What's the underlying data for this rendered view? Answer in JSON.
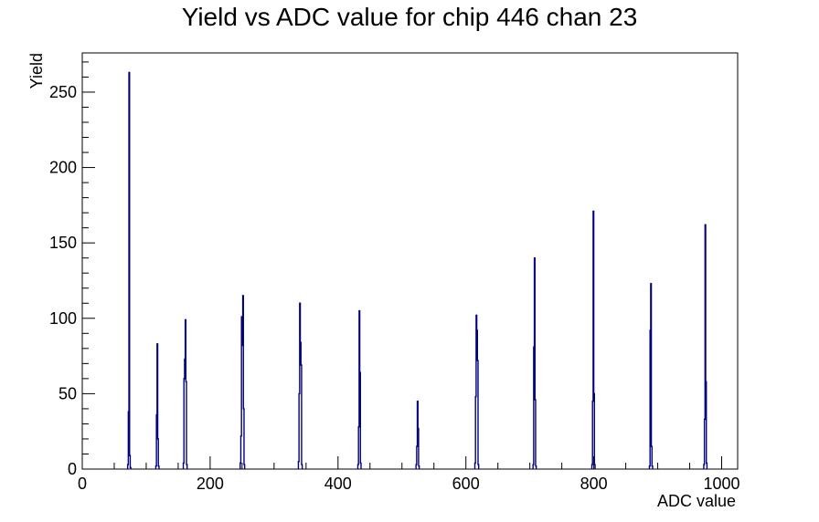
{
  "chart_data": {
    "type": "histogram",
    "title": "Yield vs ADC value for chip 446 chan 23",
    "xlabel": "ADC value",
    "ylabel": "Yield",
    "xlim": [
      0,
      1025
    ],
    "ylim": [
      0,
      276
    ],
    "x_major_ticks": [
      0,
      200,
      400,
      600,
      800,
      1000
    ],
    "x_tick_labels": [
      "0",
      "200",
      "400",
      "600",
      "800",
      "1000"
    ],
    "y_major_ticks": [
      0,
      50,
      100,
      150,
      200,
      250
    ],
    "y_tick_labels": [
      "0",
      "50",
      "100",
      "150",
      "200",
      "250"
    ],
    "grid": false,
    "line_color": "#00007f",
    "bins": [
      {
        "x": 71,
        "y": 3
      },
      {
        "x": 72,
        "y": 38
      },
      {
        "x": 73,
        "y": 263
      },
      {
        "x": 74,
        "y": 9
      },
      {
        "x": 75,
        "y": 1
      },
      {
        "x": 115,
        "y": 2
      },
      {
        "x": 116,
        "y": 36
      },
      {
        "x": 117,
        "y": 83
      },
      {
        "x": 118,
        "y": 20
      },
      {
        "x": 119,
        "y": 2
      },
      {
        "x": 158,
        "y": 4
      },
      {
        "x": 159,
        "y": 60
      },
      {
        "x": 160,
        "y": 73
      },
      {
        "x": 161,
        "y": 99
      },
      {
        "x": 162,
        "y": 58
      },
      {
        "x": 163,
        "y": 3
      },
      {
        "x": 247,
        "y": 4
      },
      {
        "x": 248,
        "y": 22
      },
      {
        "x": 249,
        "y": 101
      },
      {
        "x": 250,
        "y": 82
      },
      {
        "x": 251,
        "y": 115
      },
      {
        "x": 252,
        "y": 40
      },
      {
        "x": 253,
        "y": 3
      },
      {
        "x": 338,
        "y": 5
      },
      {
        "x": 339,
        "y": 50
      },
      {
        "x": 340,
        "y": 110
      },
      {
        "x": 341,
        "y": 84
      },
      {
        "x": 342,
        "y": 69
      },
      {
        "x": 343,
        "y": 3
      },
      {
        "x": 431,
        "y": 3
      },
      {
        "x": 432,
        "y": 28
      },
      {
        "x": 433,
        "y": 105
      },
      {
        "x": 434,
        "y": 64
      },
      {
        "x": 435,
        "y": 4
      },
      {
        "x": 522,
        "y": 3
      },
      {
        "x": 523,
        "y": 15
      },
      {
        "x": 524,
        "y": 45
      },
      {
        "x": 525,
        "y": 27
      },
      {
        "x": 526,
        "y": 2
      },
      {
        "x": 614,
        "y": 4
      },
      {
        "x": 615,
        "y": 48
      },
      {
        "x": 616,
        "y": 102
      },
      {
        "x": 617,
        "y": 92
      },
      {
        "x": 618,
        "y": 72
      },
      {
        "x": 619,
        "y": 3
      },
      {
        "x": 705,
        "y": 3
      },
      {
        "x": 706,
        "y": 81
      },
      {
        "x": 707,
        "y": 140
      },
      {
        "x": 708,
        "y": 46
      },
      {
        "x": 709,
        "y": 2
      },
      {
        "x": 797,
        "y": 3
      },
      {
        "x": 798,
        "y": 45
      },
      {
        "x": 799,
        "y": 171
      },
      {
        "x": 800,
        "y": 50
      },
      {
        "x": 801,
        "y": 3
      },
      {
        "x": 887,
        "y": 2
      },
      {
        "x": 888,
        "y": 92
      },
      {
        "x": 889,
        "y": 123
      },
      {
        "x": 890,
        "y": 15
      },
      {
        "x": 891,
        "y": 2
      },
      {
        "x": 972,
        "y": 3
      },
      {
        "x": 973,
        "y": 33
      },
      {
        "x": 974,
        "y": 162
      },
      {
        "x": 975,
        "y": 58
      },
      {
        "x": 976,
        "y": 4
      }
    ]
  }
}
